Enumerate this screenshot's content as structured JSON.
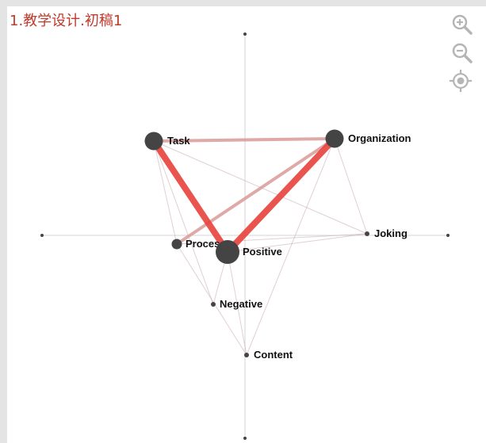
{
  "title": "1.教学设计.初稿1",
  "controls": {
    "zoom_in": "zoom-in-icon",
    "zoom_out": "zoom-out-icon",
    "recenter": "locate-icon"
  },
  "colors": {
    "node_fill": "#444444",
    "edge_strong": "#e8413c",
    "edge_medium": "#d99a98",
    "edge_weak": "#c9a7b4",
    "axis": "#d0d0d0",
    "title": "#c0392b",
    "icon": "#b5b5b5"
  },
  "nodes": [
    {
      "id": "task",
      "label": "Task",
      "size": "large"
    },
    {
      "id": "organization",
      "label": "Organization",
      "size": "large"
    },
    {
      "id": "process",
      "label": "Process",
      "size": "medium"
    },
    {
      "id": "positive",
      "label": "Positive",
      "size": "xlarge"
    },
    {
      "id": "joking",
      "label": "Joking",
      "size": "small"
    },
    {
      "id": "negative",
      "label": "Negative",
      "size": "small"
    },
    {
      "id": "content",
      "label": "Content",
      "size": "small"
    }
  ],
  "edges": [
    {
      "from": "task",
      "to": "positive",
      "weight": "strong"
    },
    {
      "from": "organization",
      "to": "positive",
      "weight": "strong"
    },
    {
      "from": "task",
      "to": "organization",
      "weight": "medium"
    },
    {
      "from": "organization",
      "to": "process",
      "weight": "medium"
    },
    {
      "from": "task",
      "to": "process",
      "weight": "weak"
    },
    {
      "from": "task",
      "to": "joking",
      "weight": "weak"
    },
    {
      "from": "organization",
      "to": "content",
      "weight": "weak"
    },
    {
      "from": "organization",
      "to": "joking",
      "weight": "weak"
    },
    {
      "from": "process",
      "to": "joking",
      "weight": "weak"
    },
    {
      "from": "process",
      "to": "content",
      "weight": "weak"
    },
    {
      "from": "task",
      "to": "negative",
      "weight": "weak"
    },
    {
      "from": "positive",
      "to": "content",
      "weight": "weak"
    },
    {
      "from": "positive",
      "to": "negative",
      "weight": "weak"
    },
    {
      "from": "positive",
      "to": "joking",
      "weight": "weak"
    }
  ]
}
